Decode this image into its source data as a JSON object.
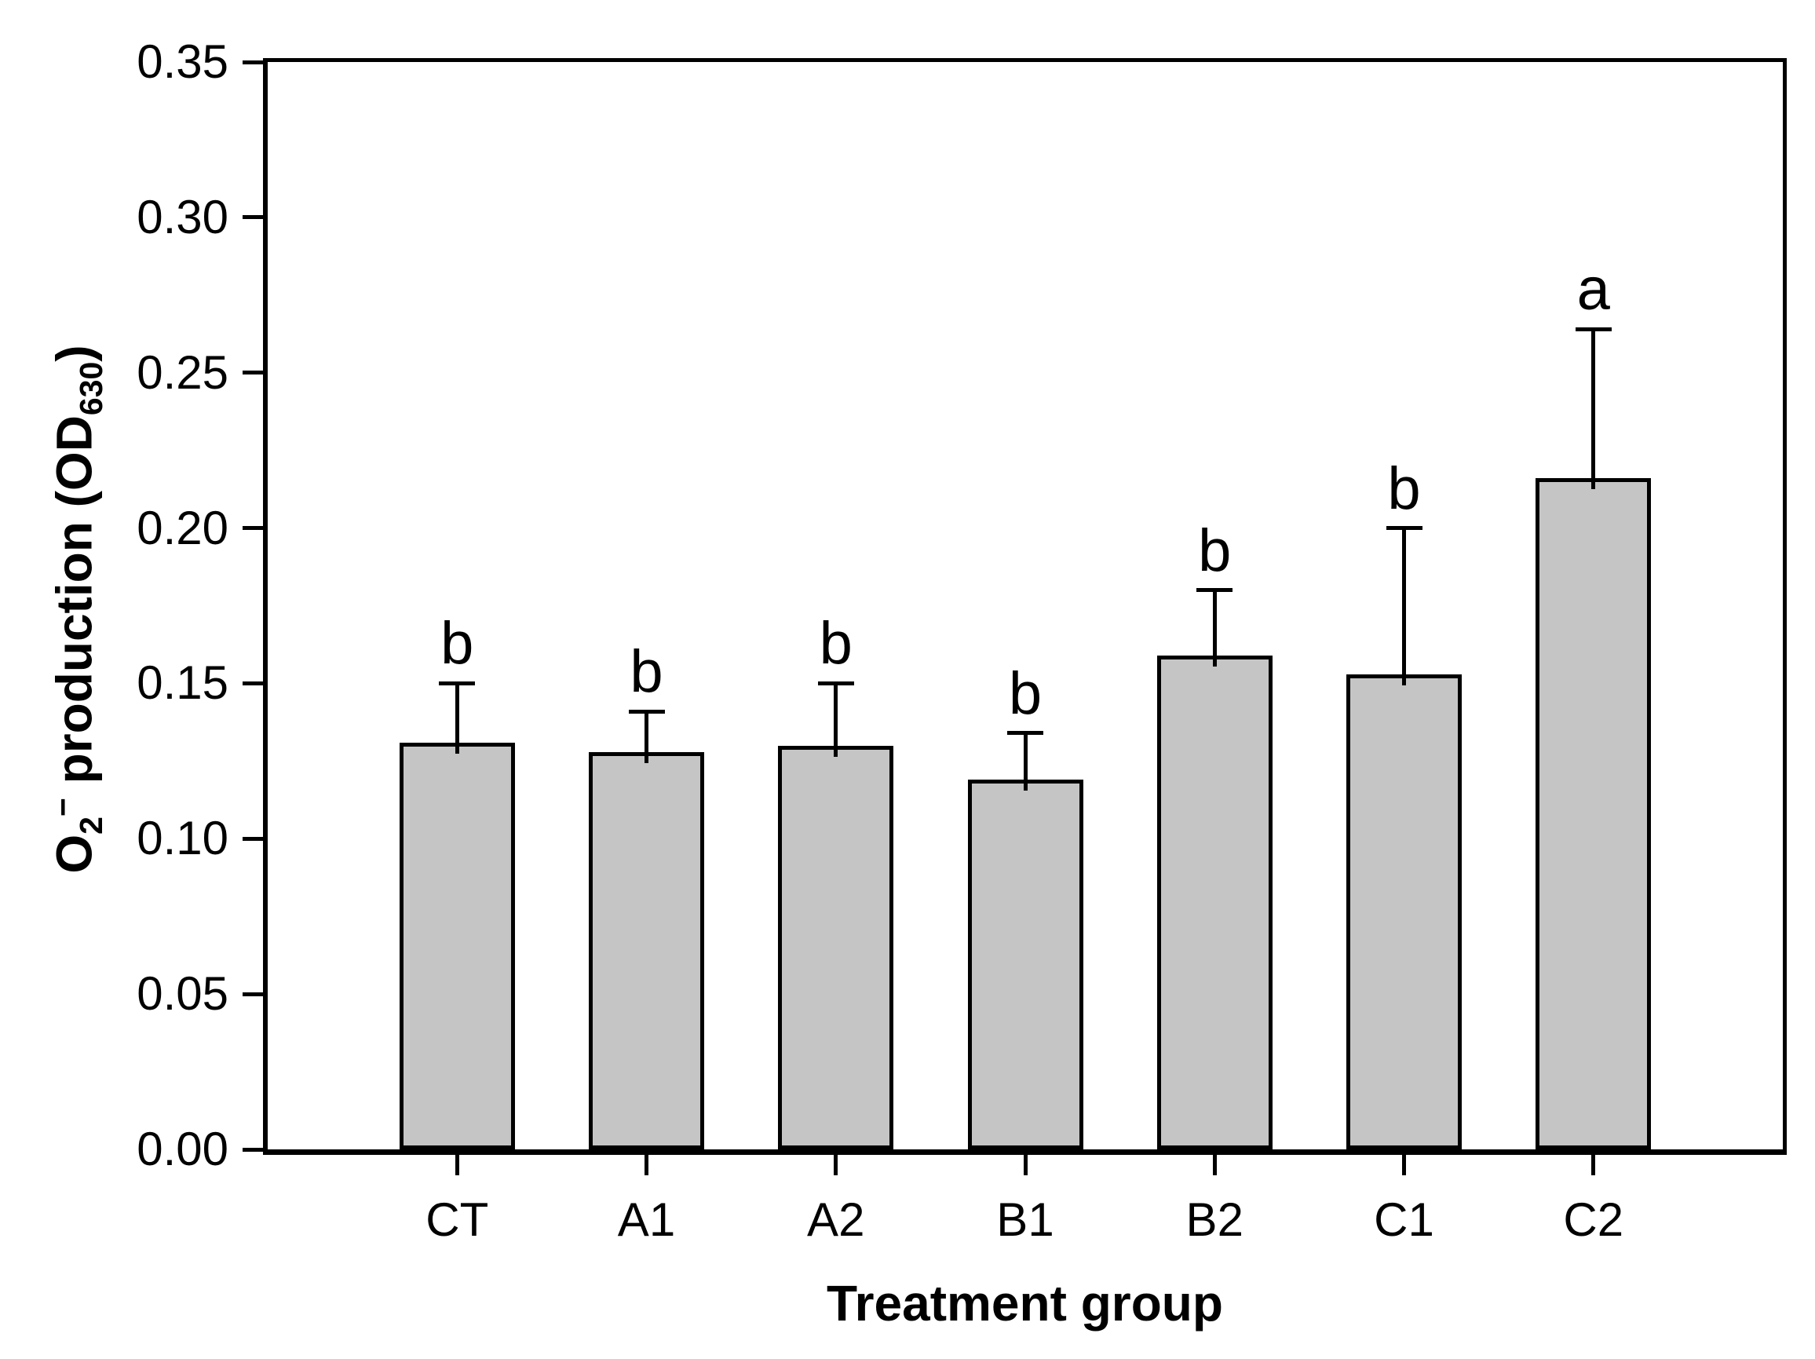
{
  "chart_data": {
    "type": "bar",
    "title": "",
    "xlabel": "Treatment group",
    "ylabel": "O2− production (OD630)",
    "ylabel_parts": [
      {
        "text": "O"
      },
      {
        "text": "2",
        "style": "sub"
      },
      {
        "text": "−",
        "style": "sup"
      },
      {
        "text": " production (OD"
      },
      {
        "text": "630",
        "style": "sub"
      },
      {
        "text": ")"
      }
    ],
    "categories": [
      "CT",
      "A1",
      "A2",
      "B1",
      "B2",
      "C1",
      "C2"
    ],
    "values": [
      0.131,
      0.128,
      0.13,
      0.119,
      0.159,
      0.153,
      0.216
    ],
    "errors_plus": [
      0.019,
      0.013,
      0.02,
      0.015,
      0.021,
      0.047,
      0.048
    ],
    "sig_letters": [
      "b",
      "b",
      "b",
      "b",
      "b",
      "b",
      "a"
    ],
    "ylim": [
      0,
      0.35
    ],
    "y_ticks": [
      0.0,
      0.05,
      0.1,
      0.15,
      0.2,
      0.25,
      0.3,
      0.35
    ],
    "y_tick_labels": [
      "0.00",
      "0.05",
      "0.10",
      "0.15",
      "0.20",
      "0.25",
      "0.30",
      "0.35"
    ],
    "grid": false,
    "legend": null,
    "bar_fill_color": "#c5c5c5",
    "bar_edge_color": "#000000",
    "error_bar_color": "#000000",
    "text_color": "#000000",
    "background_color": "#ffffff"
  }
}
